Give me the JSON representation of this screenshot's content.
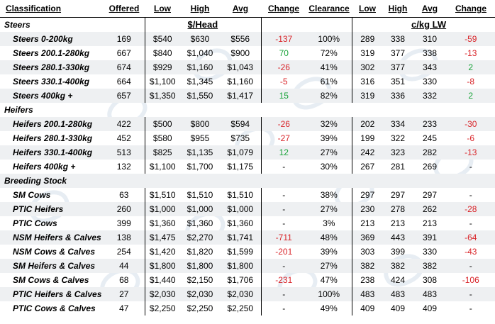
{
  "headers": {
    "classification": "Classification",
    "offered": "Offered",
    "low": "Low",
    "high": "High",
    "avg": "Avg",
    "change": "Change",
    "clearance": "Clearance",
    "low2": "Low",
    "high2": "High",
    "avg2": "Avg",
    "change2": "Change"
  },
  "units": {
    "head": "$/Head",
    "lw": "c/kg LW"
  },
  "sections": [
    {
      "title": "Steers",
      "rows": [
        {
          "name": "Steers 0-200kg",
          "offered": "169",
          "low": "$540",
          "high": "$630",
          "avg": "$556",
          "change": "-137",
          "clearance": "100%",
          "low2": "289",
          "high2": "338",
          "avg2": "310",
          "change2": "-59"
        },
        {
          "name": "Steers 200.1-280kg",
          "offered": "667",
          "low": "$840",
          "high": "$1,040",
          "avg": "$900",
          "change": "70",
          "clearance": "72%",
          "low2": "319",
          "high2": "377",
          "avg2": "338",
          "change2": "-13"
        },
        {
          "name": "Steers 280.1-330kg",
          "offered": "674",
          "low": "$929",
          "high": "$1,160",
          "avg": "$1,043",
          "change": "-26",
          "clearance": "41%",
          "low2": "302",
          "high2": "377",
          "avg2": "343",
          "change2": "2"
        },
        {
          "name": "Steers 330.1-400kg",
          "offered": "664",
          "low": "$1,100",
          "high": "$1,345",
          "avg": "$1,160",
          "change": "-5",
          "clearance": "61%",
          "low2": "316",
          "high2": "351",
          "avg2": "330",
          "change2": "-8"
        },
        {
          "name": "Steers 400kg +",
          "offered": "657",
          "low": "$1,350",
          "high": "$1,550",
          "avg": "$1,417",
          "change": "15",
          "clearance": "82%",
          "low2": "319",
          "high2": "336",
          "avg2": "332",
          "change2": "2"
        }
      ]
    },
    {
      "title": "Heifers",
      "rows": [
        {
          "name": "Heifers 200.1-280kg",
          "offered": "422",
          "low": "$500",
          "high": "$800",
          "avg": "$594",
          "change": "-26",
          "clearance": "32%",
          "low2": "202",
          "high2": "334",
          "avg2": "233",
          "change2": "-30"
        },
        {
          "name": "Heifers 280.1-330kg",
          "offered": "452",
          "low": "$580",
          "high": "$955",
          "avg": "$735",
          "change": "-27",
          "clearance": "39%",
          "low2": "199",
          "high2": "322",
          "avg2": "245",
          "change2": "-6"
        },
        {
          "name": "Heifers 330.1-400kg",
          "offered": "513",
          "low": "$825",
          "high": "$1,135",
          "avg": "$1,079",
          "change": "12",
          "clearance": "27%",
          "low2": "242",
          "high2": "323",
          "avg2": "282",
          "change2": "-13"
        },
        {
          "name": "Heifers 400kg +",
          "offered": "132",
          "low": "$1,100",
          "high": "$1,700",
          "avg": "$1,175",
          "change": "-",
          "clearance": "30%",
          "low2": "267",
          "high2": "281",
          "avg2": "269",
          "change2": "-"
        }
      ]
    },
    {
      "title": "Breeding Stock",
      "rows": [
        {
          "name": "SM Cows",
          "offered": "63",
          "low": "$1,510",
          "high": "$1,510",
          "avg": "$1,510",
          "change": "-",
          "clearance": "38%",
          "low2": "297",
          "high2": "297",
          "avg2": "297",
          "change2": "-"
        },
        {
          "name": "PTIC Heifers",
          "offered": "260",
          "low": "$1,000",
          "high": "$1,000",
          "avg": "$1,000",
          "change": "-",
          "clearance": "27%",
          "low2": "230",
          "high2": "278",
          "avg2": "262",
          "change2": "-28"
        },
        {
          "name": "PTIC Cows",
          "offered": "399",
          "low": "$1,360",
          "high": "$1,360",
          "avg": "$1,360",
          "change": "-",
          "clearance": "3%",
          "low2": "213",
          "high2": "213",
          "avg2": "213",
          "change2": "-"
        },
        {
          "name": "NSM Heifers & Calves",
          "offered": "138",
          "low": "$1,475",
          "high": "$2,270",
          "avg": "$1,741",
          "change": "-711",
          "clearance": "48%",
          "low2": "369",
          "high2": "443",
          "avg2": "391",
          "change2": "-64"
        },
        {
          "name": "NSM Cows & Calves",
          "offered": "254",
          "low": "$1,420",
          "high": "$1,820",
          "avg": "$1,599",
          "change": "-201",
          "clearance": "39%",
          "low2": "303",
          "high2": "399",
          "avg2": "330",
          "change2": "-43"
        },
        {
          "name": "SM Heifers & Calves",
          "offered": "44",
          "low": "$1,800",
          "high": "$1,800",
          "avg": "$1,800",
          "change": "-",
          "clearance": "27%",
          "low2": "382",
          "high2": "382",
          "avg2": "382",
          "change2": "-"
        },
        {
          "name": "SM Cows & Calves",
          "offered": "68",
          "low": "$1,440",
          "high": "$2,150",
          "avg": "$1,706",
          "change": "-231",
          "clearance": "47%",
          "low2": "238",
          "high2": "424",
          "avg2": "308",
          "change2": "-106"
        },
        {
          "name": "PTIC Heifers & Calves",
          "offered": "27",
          "low": "$2,030",
          "high": "$2,030",
          "avg": "$2,030",
          "change": "-",
          "clearance": "100%",
          "low2": "483",
          "high2": "483",
          "avg2": "483",
          "change2": "-"
        },
        {
          "name": "PTIC Cows & Calves",
          "offered": "47",
          "low": "$2,250",
          "high": "$2,250",
          "avg": "$2,250",
          "change": "-",
          "clearance": "49%",
          "low2": "409",
          "high2": "409",
          "avg2": "409",
          "change2": "-"
        }
      ]
    }
  ],
  "colors": {
    "negative": "#d9252a",
    "positive": "#1aa33a",
    "stripe": "#eef0f2"
  }
}
